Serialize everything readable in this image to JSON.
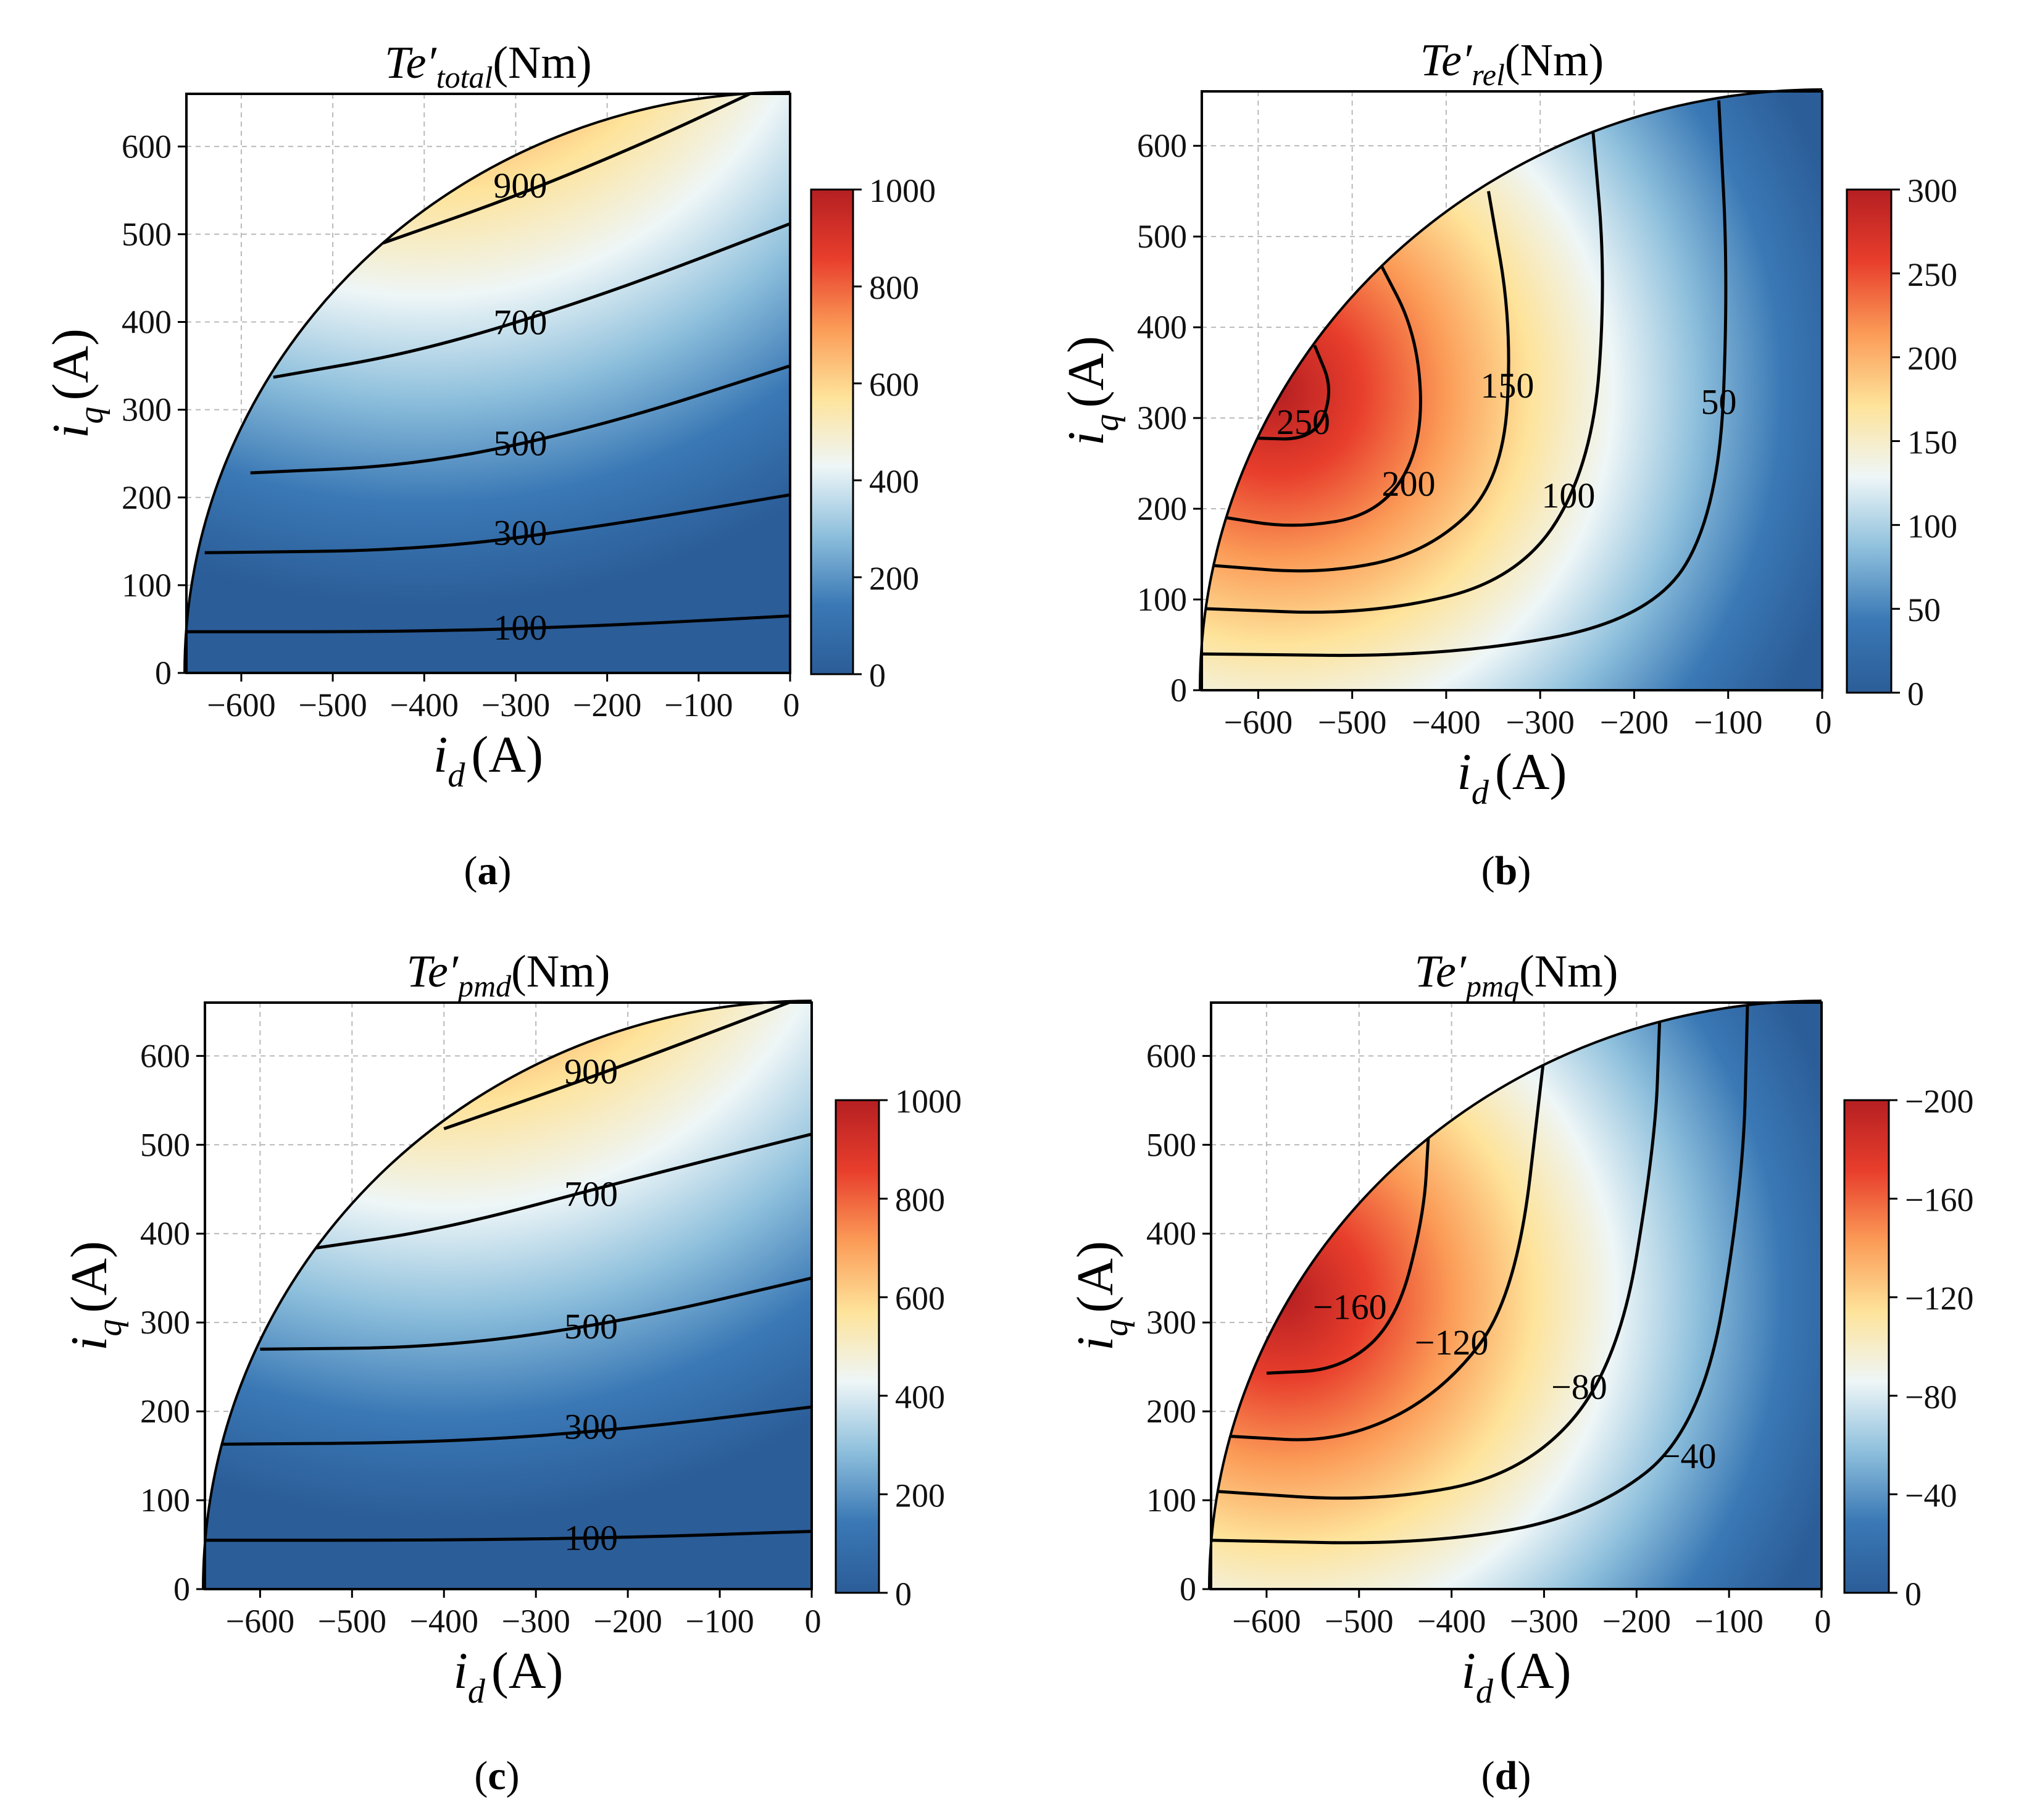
{
  "colors": {
    "stops": [
      "#2b5d98",
      "#3a78b5",
      "#8dbfdc",
      "#eef6f7",
      "#fee39a",
      "#fb9b57",
      "#e83e2c",
      "#b51f22"
    ]
  },
  "chart_data": [
    {
      "type": "heatmap",
      "panel": "(a)",
      "panel_letter": "a",
      "title": {
        "main": "Te′",
        "sub": "total",
        "unit": "(Nm)"
      },
      "xlabel": {
        "main": "i",
        "sub": "d",
        "unit": "(A)"
      },
      "ylabel": {
        "main": "i",
        "sub": "q",
        "unit": "(A)"
      },
      "xlim": [
        -660,
        0
      ],
      "ylim": [
        0,
        660
      ],
      "xticks": [
        "−600",
        "−500",
        "−400",
        "−300",
        "−200",
        "−100",
        "0"
      ],
      "yticks": [
        "0",
        "100",
        "200",
        "300",
        "400",
        "500",
        "600"
      ],
      "colorbar": {
        "range": [
          0,
          1000
        ],
        "ticks": [
          "0",
          "200",
          "400",
          "600",
          "800",
          "1000"
        ]
      },
      "contours": [
        {
          "level": "100",
          "label_at": [
            -295,
            52
          ],
          "points": [
            [
              -660,
              47
            ],
            [
              -400,
              47
            ],
            [
              -200,
              54
            ],
            [
              0,
              65
            ]
          ]
        },
        {
          "level": "300",
          "label_at": [
            -295,
            160
          ],
          "points": [
            [
              -640,
              137
            ],
            [
              -400,
              140
            ],
            [
              -200,
              168
            ],
            [
              0,
              203
            ]
          ]
        },
        {
          "level": "500",
          "label_at": [
            -295,
            262
          ],
          "points": [
            [
              -590,
              228
            ],
            [
              -400,
              237
            ],
            [
              -200,
              283
            ],
            [
              0,
              350
            ]
          ]
        },
        {
          "level": "700",
          "label_at": [
            -295,
            400
          ],
          "points": [
            [
              -565,
              337
            ],
            [
              -400,
              367
            ],
            [
              -200,
              432
            ],
            [
              0,
              512
            ]
          ]
        },
        {
          "level": "900",
          "label_at": [
            -295,
            556
          ],
          "points": [
            [
              -445,
              490
            ],
            [
              -300,
              543
            ],
            [
              -150,
              608
            ],
            [
              -40,
              662
            ]
          ]
        }
      ]
    },
    {
      "type": "heatmap",
      "panel": "(b)",
      "panel_letter": "b",
      "title": {
        "main": "Te′",
        "sub": "rel",
        "unit": "(Nm)"
      },
      "xlabel": {
        "main": "i",
        "sub": "d",
        "unit": "(A)"
      },
      "ylabel": {
        "main": "i",
        "sub": "q",
        "unit": "(A)"
      },
      "xlim": [
        -660,
        0
      ],
      "ylim": [
        0,
        660
      ],
      "xticks": [
        "−600",
        "−500",
        "−400",
        "−300",
        "−200",
        "−100",
        "0"
      ],
      "yticks": [
        "0",
        "100",
        "200",
        "300",
        "400",
        "500",
        "600"
      ],
      "colorbar": {
        "range": [
          0,
          300
        ],
        "ticks": [
          "0",
          "50",
          "100",
          "150",
          "200",
          "250",
          "300"
        ]
      },
      "contours": [
        {
          "level": "250",
          "label_at": [
            -552,
            296
          ],
          "points": [
            [
              -610,
              278
            ],
            [
              -540,
              276
            ],
            [
              -520,
              330
            ],
            [
              -540,
              380
            ]
          ]
        },
        {
          "level": "200",
          "label_at": [
            -440,
            228
          ],
          "points": [
            [
              -645,
              192
            ],
            [
              -560,
              178
            ],
            [
              -470,
              195
            ],
            [
              -425,
              270
            ],
            [
              -430,
              390
            ],
            [
              -475,
              480
            ]
          ]
        },
        {
          "level": "150",
          "label_at": [
            -335,
            336
          ],
          "points": [
            [
              -655,
              138
            ],
            [
              -530,
              128
            ],
            [
              -420,
              152
            ],
            [
              -340,
              230
            ],
            [
              -330,
              400
            ],
            [
              -355,
              550
            ]
          ]
        },
        {
          "level": "100",
          "label_at": [
            -270,
            215
          ],
          "points": [
            [
              -660,
              90
            ],
            [
              -480,
              83
            ],
            [
              -320,
              123
            ],
            [
              -245,
              250
            ],
            [
              -230,
              450
            ],
            [
              -245,
              630
            ]
          ]
        },
        {
          "level": "50",
          "label_at": [
            -110,
            318
          ],
          "points": [
            [
              -660,
              40
            ],
            [
              -400,
              37
            ],
            [
              -180,
              78
            ],
            [
              -110,
              200
            ],
            [
              -100,
              450
            ],
            [
              -110,
              650
            ]
          ]
        }
      ]
    },
    {
      "type": "heatmap",
      "panel": "(c)",
      "panel_letter": "c",
      "title": {
        "main": "Te′",
        "sub": "pmd",
        "unit": "(Nm)"
      },
      "xlabel": {
        "main": "i",
        "sub": "d",
        "unit": "(A)"
      },
      "ylabel": {
        "main": "i",
        "sub": "q",
        "unit": "(A)"
      },
      "xlim": [
        -660,
        0
      ],
      "ylim": [
        0,
        660
      ],
      "xticks": [
        "−600",
        "−500",
        "−400",
        "−300",
        "−200",
        "−100",
        "0"
      ],
      "yticks": [
        "0",
        "100",
        "200",
        "300",
        "400",
        "500",
        "600"
      ],
      "colorbar": {
        "range": [
          0,
          1000
        ],
        "ticks": [
          "0",
          "200",
          "400",
          "600",
          "800",
          "1000"
        ]
      },
      "contours": [
        {
          "level": "100",
          "label_at": [
            -240,
            58
          ],
          "points": [
            [
              -660,
              55
            ],
            [
              -400,
              55
            ],
            [
              -200,
              58
            ],
            [
              0,
              65
            ]
          ]
        },
        {
          "level": "300",
          "label_at": [
            -240,
            183
          ],
          "points": [
            [
              -645,
              163
            ],
            [
              -400,
              165
            ],
            [
              -200,
              180
            ],
            [
              0,
              205
            ]
          ]
        },
        {
          "level": "500",
          "label_at": [
            -240,
            296
          ],
          "points": [
            [
              -600,
              270
            ],
            [
              -400,
              272
            ],
            [
              -200,
              302
            ],
            [
              0,
              350
            ]
          ]
        },
        {
          "level": "700",
          "label_at": [
            -240,
            445
          ],
          "points": [
            [
              -545,
              383
            ],
            [
              -400,
              405
            ],
            [
              -200,
              460
            ],
            [
              0,
              512
            ]
          ]
        },
        {
          "level": "900",
          "label_at": [
            -240,
            583
          ],
          "points": [
            [
              -400,
              518
            ],
            [
              -250,
              572
            ],
            [
              -100,
              630
            ],
            [
              -20,
              662
            ]
          ]
        }
      ]
    },
    {
      "type": "heatmap",
      "panel": "(d)",
      "panel_letter": "d",
      "title": {
        "main": "Te′",
        "sub": "pmq",
        "unit": "(Nm)"
      },
      "xlabel": {
        "main": "i",
        "sub": "d",
        "unit": "(A)"
      },
      "ylabel": {
        "main": "i",
        "sub": "q",
        "unit": "(A)"
      },
      "xlim": [
        -660,
        0
      ],
      "ylim": [
        0,
        660
      ],
      "xticks": [
        "−600",
        "−500",
        "−400",
        "−300",
        "−200",
        "−100",
        "0"
      ],
      "yticks": [
        "0",
        "100",
        "200",
        "300",
        "400",
        "500",
        "600"
      ],
      "colorbar": {
        "range": [
          0,
          -200
        ],
        "ticks": [
          "0",
          "−40",
          "−80",
          "−120",
          "−160",
          "−200"
        ]
      },
      "contours": [
        {
          "level": "−160",
          "label_at": [
            -510,
            318
          ],
          "points": [
            [
              -600,
              243
            ],
            [
              -520,
              247
            ],
            [
              -460,
              300
            ],
            [
              -430,
              420
            ],
            [
              -425,
              510
            ]
          ]
        },
        {
          "level": "−120",
          "label_at": [
            -400,
            278
          ],
          "points": [
            [
              -640,
              172
            ],
            [
              -520,
              165
            ],
            [
              -410,
              220
            ],
            [
              -330,
              330
            ],
            [
              -300,
              600
            ]
          ]
        },
        {
          "level": "−80",
          "label_at": [
            -262,
            228
          ],
          "points": [
            [
              -655,
              110
            ],
            [
              -480,
              98
            ],
            [
              -320,
              130
            ],
            [
              -220,
              250
            ],
            [
              -180,
              500
            ],
            [
              -175,
              640
            ]
          ]
        },
        {
          "level": "−40",
          "label_at": [
            -144,
            150
          ],
          "points": [
            [
              -660,
              55
            ],
            [
              -430,
              50
            ],
            [
              -250,
              82
            ],
            [
              -130,
              180
            ],
            [
              -85,
              450
            ],
            [
              -80,
              660
            ]
          ]
        }
      ]
    }
  ]
}
